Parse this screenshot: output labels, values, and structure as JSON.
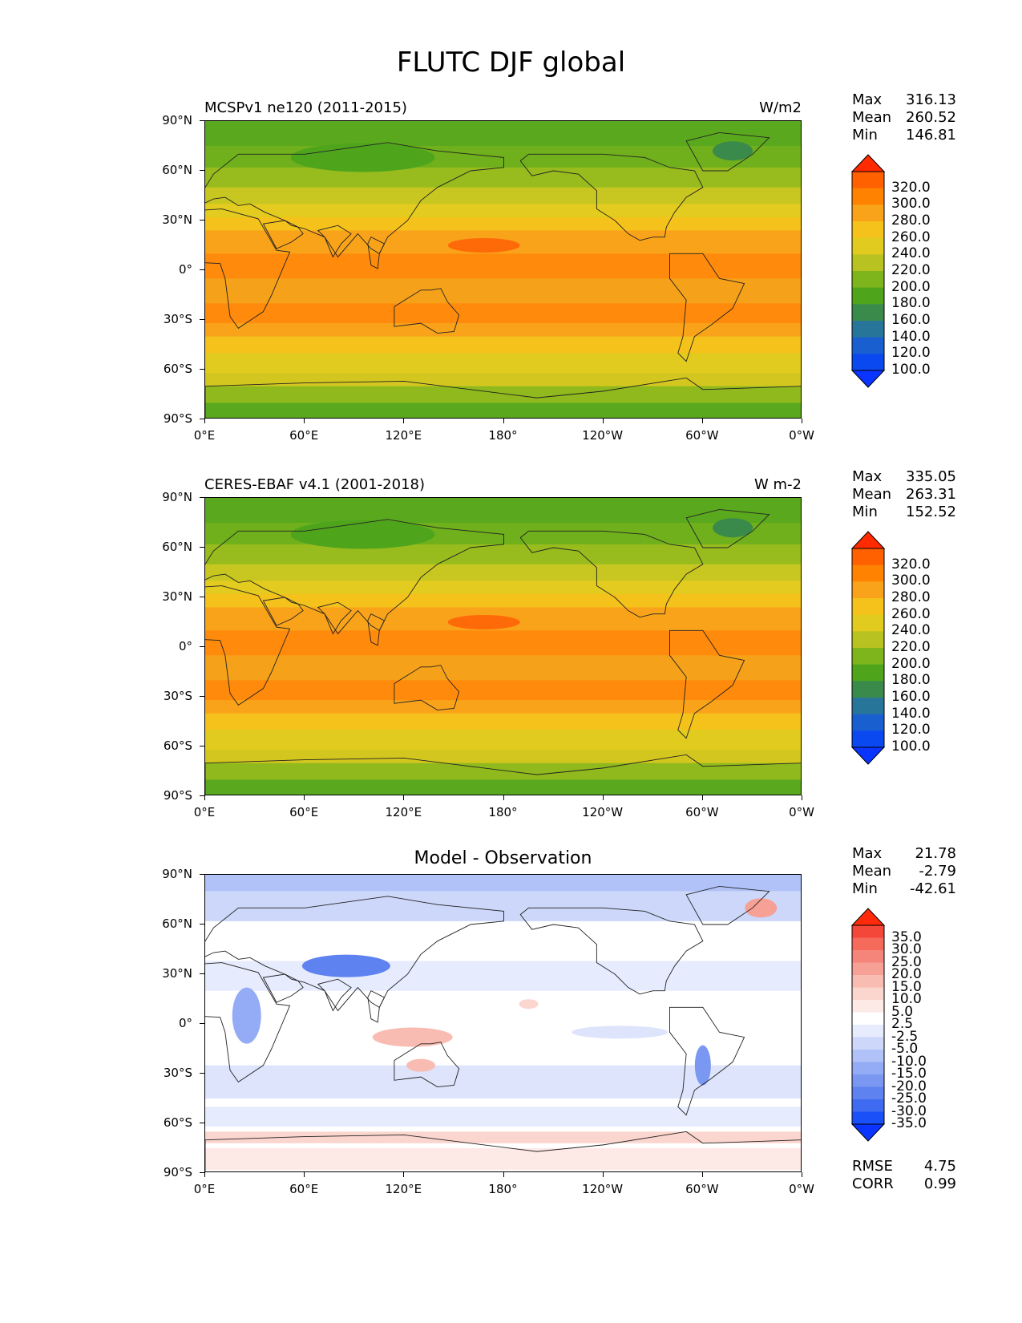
{
  "title": "FLUTC DJF global",
  "panels": [
    {
      "title": "MCSPv1 ne120 (2011-2015)",
      "units": "W/m2",
      "stats": {
        "max_label": "Max",
        "max": "316.13",
        "mean_label": "Mean",
        "mean": "260.52",
        "min_label": "Min",
        "min": "146.81"
      },
      "colorbar": {
        "labels": [
          "320.0",
          "300.0",
          "280.0",
          "260.0",
          "240.0",
          "220.0",
          "200.0",
          "180.0",
          "160.0",
          "140.0",
          "120.0",
          "100.0"
        ],
        "colors": [
          "#ff2a00",
          "#ff6000",
          "#ff8200",
          "#f9a31a",
          "#f5c21c",
          "#e2cb1f",
          "#b8c220",
          "#7fb51c",
          "#4ea51c",
          "#3a8a4c",
          "#28759a",
          "#1a5fd0",
          "#0a48f0",
          "#0a34ff"
        ]
      },
      "lat_labels": [
        "90°N",
        "60°N",
        "30°N",
        "0°",
        "30°S",
        "60°S",
        "90°S"
      ],
      "lon_labels": [
        "0°E",
        "60°E",
        "120°E",
        "180°",
        "120°W",
        "60°W",
        "0°W"
      ]
    },
    {
      "title": "CERES-EBAF v4.1 (2001-2018)",
      "units": "W m-2",
      "stats": {
        "max_label": "Max",
        "max": "335.05",
        "mean_label": "Mean",
        "mean": "263.31",
        "min_label": "Min",
        "min": "152.52"
      },
      "colorbar": {
        "labels": [
          "320.0",
          "300.0",
          "280.0",
          "260.0",
          "240.0",
          "220.0",
          "200.0",
          "180.0",
          "160.0",
          "140.0",
          "120.0",
          "100.0"
        ],
        "colors": [
          "#ff2a00",
          "#ff6000",
          "#ff8200",
          "#f9a31a",
          "#f5c21c",
          "#e2cb1f",
          "#b8c220",
          "#7fb51c",
          "#4ea51c",
          "#3a8a4c",
          "#28759a",
          "#1a5fd0",
          "#0a48f0",
          "#0a34ff"
        ]
      },
      "lat_labels": [
        "90°N",
        "60°N",
        "30°N",
        "0°",
        "30°S",
        "60°S",
        "90°S"
      ],
      "lon_labels": [
        "0°E",
        "60°E",
        "120°E",
        "180°",
        "120°W",
        "60°W",
        "0°W"
      ]
    },
    {
      "title": "Model - Observation",
      "units": "",
      "stats": {
        "max_label": "Max",
        "max": "21.78",
        "mean_label": "Mean",
        "mean": "-2.79",
        "min_label": "Min",
        "min": "-42.61"
      },
      "colorbar": {
        "labels": [
          "35.0",
          "30.0",
          "25.0",
          "20.0",
          "15.0",
          "10.0",
          "5.0",
          "2.5",
          "-2.5",
          "-5.0",
          "-10.0",
          "-15.0",
          "-20.0",
          "-25.0",
          "-30.0",
          "-35.0"
        ],
        "colors": [
          "#ff2a0a",
          "#f5463a",
          "#f56a5a",
          "#f5857a",
          "#f7a095",
          "#f9bcb2",
          "#fbd6ce",
          "#fde9e5",
          "#ffffff",
          "#e6ebfd",
          "#ccd7fa",
          "#b0c2f8",
          "#94acf5",
          "#7a97f2",
          "#5e82f0",
          "#3f6bf0",
          "#1a50f8",
          "#0a34ff"
        ]
      },
      "err_stats": {
        "rmse_label": "RMSE",
        "rmse": "4.75",
        "corr_label": "CORR",
        "corr": "0.99"
      },
      "lat_labels": [
        "90°N",
        "60°N",
        "30°N",
        "0°",
        "30°S",
        "60°S",
        "90°S"
      ],
      "lon_labels": [
        "0°E",
        "60°E",
        "120°E",
        "180°",
        "120°W",
        "60°W",
        "0°W"
      ]
    }
  ]
}
